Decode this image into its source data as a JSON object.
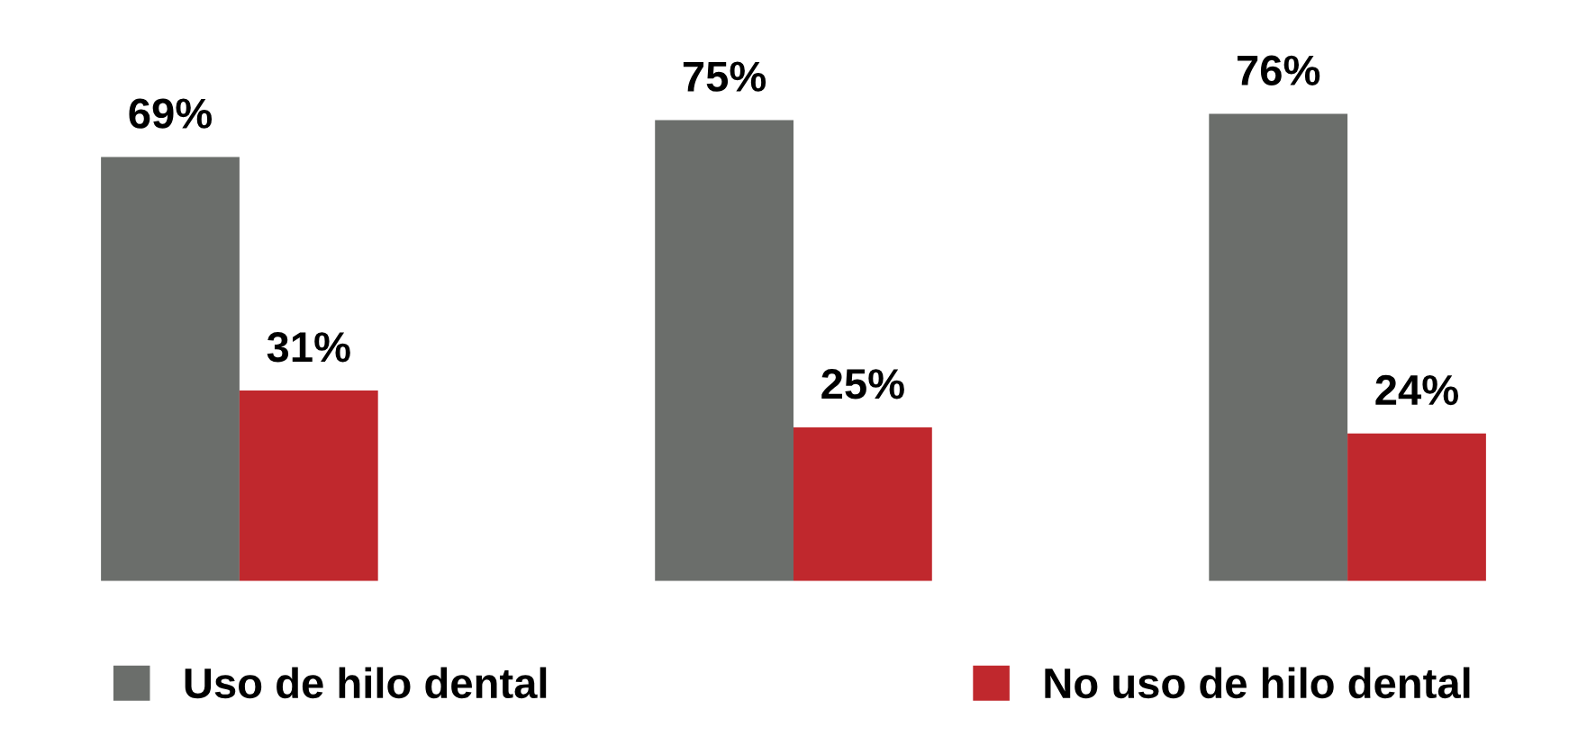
{
  "chart_data": {
    "type": "bar",
    "categories": [
      null,
      null,
      null
    ],
    "series": [
      {
        "name": "Uso de hilo dental",
        "color": "#6b6e6b",
        "values": [
          69,
          75,
          76
        ],
        "value_labels": [
          "69%",
          "75%",
          "76%"
        ]
      },
      {
        "name": "No uso de hilo dental",
        "color": "#c0282d",
        "values": [
          31,
          25,
          24
        ],
        "value_labels": [
          "31%",
          "25%",
          "24%"
        ]
      }
    ],
    "legend": "bottom",
    "grid": false
  }
}
